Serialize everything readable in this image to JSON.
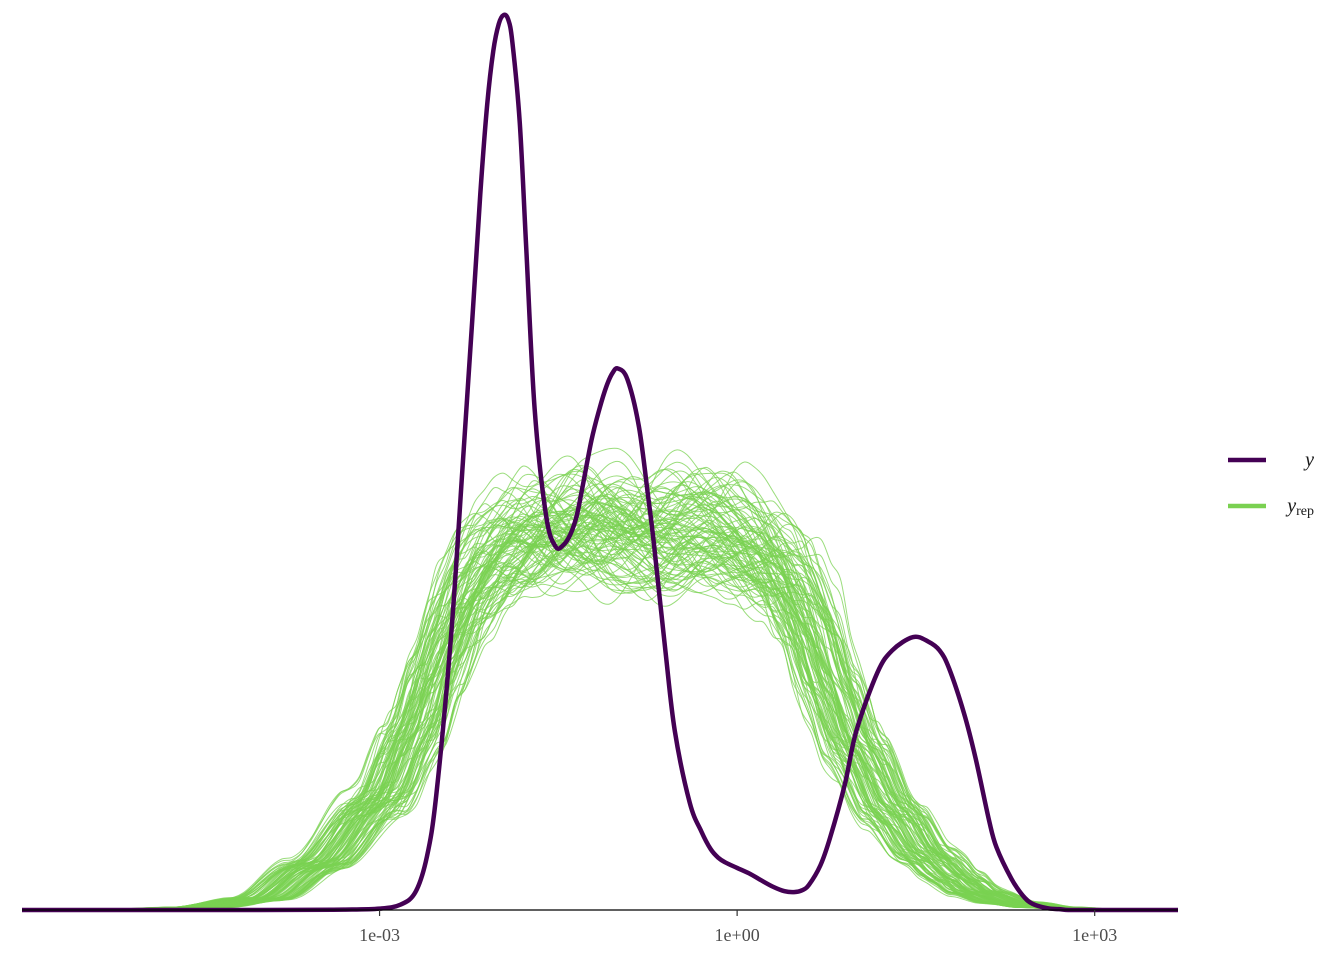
{
  "chart_data": {
    "type": "line",
    "title": "",
    "xlabel": "",
    "ylabel": "",
    "x_scale": "log10",
    "xlim": [
      1e-06,
      5000
    ],
    "ylim": [
      0,
      1
    ],
    "y_axis_shown": false,
    "grid": false,
    "x_ticks": [
      {
        "value": 0.001,
        "label": "1e-03"
      },
      {
        "value": 1,
        "label": "1e+00"
      },
      {
        "value": 1000,
        "label": "1e+03"
      }
    ],
    "legend": {
      "placement": "right",
      "entries": [
        {
          "key": "y",
          "label": "y",
          "color": "#440154"
        },
        {
          "key": "yrep",
          "label": "y",
          "subscript": "rep",
          "color": "#7AD151"
        }
      ]
    },
    "series": [
      {
        "name": "y",
        "color": "#440154",
        "x": [
          1e-06,
          0.0001,
          0.0005,
          0.001,
          0.0015,
          0.002,
          0.0025,
          0.003,
          0.004,
          0.005,
          0.006,
          0.007,
          0.008,
          0.009,
          0.01,
          0.011,
          0.012,
          0.013,
          0.015,
          0.017,
          0.02,
          0.025,
          0.03,
          0.035,
          0.04,
          0.045,
          0.05,
          0.06,
          0.07,
          0.08,
          0.09,
          0.1,
          0.12,
          0.15,
          0.18,
          0.2,
          0.25,
          0.3,
          0.4,
          0.5,
          0.6,
          0.7,
          0.8,
          1,
          1.3,
          1.6,
          2,
          2.5,
          3,
          3.5,
          4,
          5,
          6,
          8,
          10,
          15,
          20,
          30,
          40,
          50,
          60,
          80,
          100,
          130,
          150,
          200,
          250,
          300,
          400,
          500,
          600,
          800,
          1000,
          5000
        ],
        "y": [
          0,
          0,
          0.0004,
          0.0015,
          0.006,
          0.02,
          0.06,
          0.13,
          0.31,
          0.5,
          0.66,
          0.8,
          0.9,
          0.96,
          0.99,
          1.0,
          0.995,
          0.97,
          0.88,
          0.74,
          0.56,
          0.44,
          0.406,
          0.408,
          0.42,
          0.44,
          0.47,
          0.525,
          0.56,
          0.585,
          0.6,
          0.605,
          0.593,
          0.54,
          0.46,
          0.41,
          0.29,
          0.2,
          0.12,
          0.088,
          0.068,
          0.058,
          0.053,
          0.047,
          0.04,
          0.033,
          0.026,
          0.021,
          0.02,
          0.022,
          0.028,
          0.05,
          0.08,
          0.14,
          0.2,
          0.265,
          0.29,
          0.305,
          0.3,
          0.29,
          0.27,
          0.22,
          0.17,
          0.1,
          0.07,
          0.035,
          0.016,
          0.007,
          0.002,
          0.001,
          0,
          0,
          0,
          0
        ]
      },
      {
        "name": "yrep",
        "color": "#7AD151",
        "draws": 100,
        "x": [
          1e-06,
          1e-05,
          3e-05,
          0.0001,
          0.0003,
          0.001,
          0.002,
          0.003,
          0.005,
          0.008,
          0.012,
          0.02,
          0.04,
          0.08,
          0.15,
          0.3,
          0.6,
          1,
          1.5,
          2.5,
          4,
          6,
          10,
          20,
          40,
          70,
          100,
          200,
          400,
          1000,
          5000
        ],
        "y": [
          0,
          0.001,
          0.003,
          0.012,
          0.05,
          0.12,
          0.2,
          0.27,
          0.34,
          0.38,
          0.4,
          0.42,
          0.42,
          0.43,
          0.42,
          0.42,
          0.42,
          0.41,
          0.4,
          0.37,
          0.32,
          0.25,
          0.18,
          0.11,
          0.06,
          0.035,
          0.02,
          0.008,
          0.003,
          0.0005,
          0
        ]
      }
    ]
  }
}
